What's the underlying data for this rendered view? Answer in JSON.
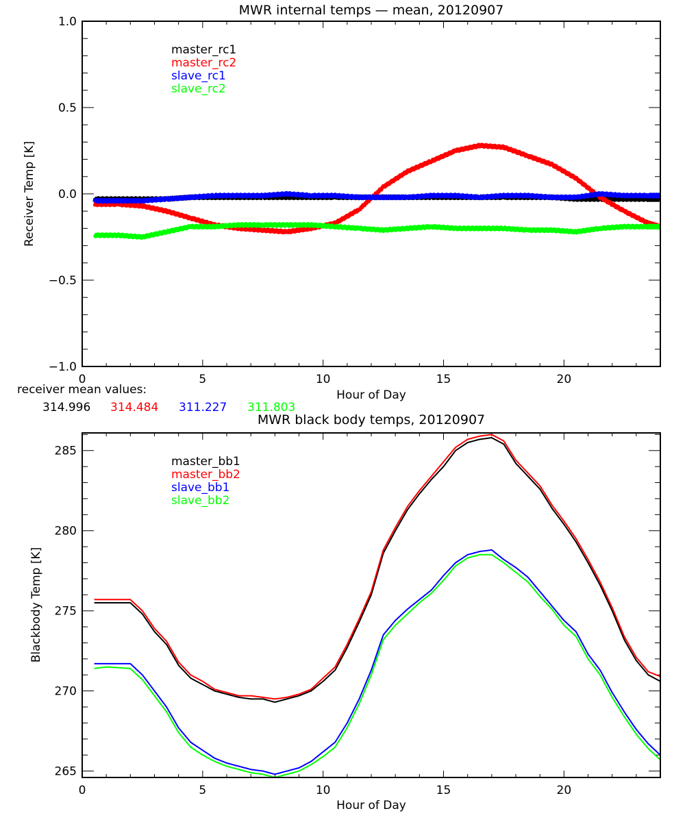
{
  "chart_data": [
    {
      "type": "line",
      "title": "MWR internal temps — mean, 20120907",
      "xlabel": "Hour of Day",
      "ylabel": "Receiver Temp [K]",
      "xlim": [
        0,
        24
      ],
      "ylim": [
        -1.0,
        1.0
      ],
      "xticks": [
        0,
        5,
        10,
        15,
        20
      ],
      "xtick_labels": [
        "0",
        "5",
        "10",
        "15",
        "20"
      ],
      "yticks": [
        -1.0,
        -0.5,
        0.0,
        0.5,
        1.0
      ],
      "ytick_labels": [
        "−1.0",
        "−0.5",
        "0.0",
        "0.5",
        "1.0"
      ],
      "grid": false,
      "legend_position": "top-left",
      "x": [
        0.5,
        1.5,
        2.5,
        3.5,
        4.5,
        5.5,
        6.5,
        7.5,
        8.5,
        9.5,
        10.5,
        11.5,
        12.5,
        13.5,
        14.5,
        15.5,
        16.5,
        17.5,
        18.5,
        19.5,
        20.5,
        21.5,
        22.5,
        23.5,
        24.0
      ],
      "series": [
        {
          "name": "master_rc1",
          "color": "#000000",
          "values": [
            -0.03,
            -0.03,
            -0.03,
            -0.03,
            -0.02,
            -0.02,
            -0.02,
            -0.02,
            -0.02,
            -0.02,
            -0.02,
            -0.02,
            -0.02,
            -0.02,
            -0.02,
            -0.02,
            -0.02,
            -0.02,
            -0.02,
            -0.02,
            -0.03,
            -0.03,
            -0.03,
            -0.03,
            -0.03
          ]
        },
        {
          "name": "master_rc2",
          "color": "#ff0000",
          "values": [
            -0.06,
            -0.06,
            -0.07,
            -0.1,
            -0.14,
            -0.18,
            -0.2,
            -0.21,
            -0.22,
            -0.2,
            -0.17,
            -0.09,
            0.04,
            0.13,
            0.19,
            0.25,
            0.28,
            0.27,
            0.22,
            0.17,
            0.09,
            -0.02,
            -0.1,
            -0.17,
            -0.19
          ]
        },
        {
          "name": "slave_rc1",
          "color": "#0000ff",
          "values": [
            -0.04,
            -0.04,
            -0.04,
            -0.03,
            -0.02,
            -0.01,
            -0.01,
            -0.01,
            0.0,
            -0.01,
            -0.01,
            -0.02,
            -0.02,
            -0.02,
            -0.01,
            -0.01,
            -0.02,
            -0.01,
            -0.01,
            -0.02,
            -0.02,
            0.0,
            -0.01,
            -0.01,
            -0.01
          ]
        },
        {
          "name": "slave_rc2",
          "color": "#00ff00",
          "values": [
            -0.24,
            -0.24,
            -0.25,
            -0.22,
            -0.19,
            -0.19,
            -0.18,
            -0.18,
            -0.18,
            -0.18,
            -0.19,
            -0.2,
            -0.21,
            -0.2,
            -0.19,
            -0.2,
            -0.2,
            -0.2,
            -0.21,
            -0.21,
            -0.22,
            -0.2,
            -0.19,
            -0.19,
            -0.19
          ]
        }
      ],
      "annotation": {
        "label": "receiver mean values:",
        "values": [
          {
            "text": "314.996",
            "color": "#000000"
          },
          {
            "text": "314.484",
            "color": "#ff0000"
          },
          {
            "text": "311.227",
            "color": "#0000ff"
          },
          {
            "text": "311.803",
            "color": "#00ff00"
          }
        ]
      }
    },
    {
      "type": "line",
      "title": "MWR black body temps, 20120907",
      "xlabel": "Hour of Day",
      "ylabel": "Blackbody Temp [K]",
      "xlim": [
        0,
        24
      ],
      "ylim": [
        264.6,
        286.1
      ],
      "xticks": [
        0,
        5,
        10,
        15,
        20
      ],
      "xtick_labels": [
        "0",
        "5",
        "10",
        "15",
        "20"
      ],
      "yticks": [
        265,
        270,
        275,
        280,
        285
      ],
      "ytick_labels": [
        "265",
        "270",
        "275",
        "280",
        "285"
      ],
      "grid": false,
      "legend_position": "top-left",
      "x": [
        0.5,
        1.0,
        2.0,
        2.5,
        3.0,
        3.5,
        4.0,
        4.5,
        5.0,
        5.5,
        6.0,
        6.5,
        7.0,
        7.5,
        8.0,
        8.5,
        9.0,
        9.5,
        10.0,
        10.5,
        11.0,
        11.5,
        12.0,
        12.5,
        13.0,
        13.5,
        14.0,
        14.5,
        15.0,
        15.5,
        16.0,
        16.5,
        17.0,
        17.5,
        18.0,
        18.5,
        19.0,
        19.5,
        20.0,
        20.5,
        21.0,
        21.5,
        22.0,
        22.5,
        23.0,
        23.5,
        24.0
      ],
      "series": [
        {
          "name": "master_bb1",
          "color": "#000000",
          "values": [
            275.5,
            275.5,
            275.5,
            274.8,
            273.7,
            272.9,
            271.6,
            270.8,
            270.4,
            270.0,
            269.8,
            269.6,
            269.5,
            269.5,
            269.3,
            269.5,
            269.7,
            270.0,
            270.6,
            271.3,
            272.7,
            274.3,
            276.0,
            278.6,
            280.0,
            281.3,
            282.3,
            283.2,
            284.0,
            285.0,
            285.5,
            285.7,
            285.8,
            285.4,
            284.2,
            283.4,
            282.6,
            281.4,
            280.4,
            279.3,
            278.0,
            276.6,
            275.0,
            273.2,
            271.9,
            271.0,
            270.6
          ]
        },
        {
          "name": "master_bb2",
          "color": "#ff0000",
          "values": [
            275.7,
            275.7,
            275.7,
            275.0,
            273.9,
            273.1,
            271.8,
            271.0,
            270.6,
            270.1,
            269.9,
            269.7,
            269.7,
            269.6,
            269.5,
            269.6,
            269.8,
            270.1,
            270.8,
            271.5,
            272.9,
            274.5,
            276.2,
            278.8,
            280.2,
            281.5,
            282.5,
            283.4,
            284.3,
            285.2,
            285.7,
            285.9,
            286.0,
            285.6,
            284.4,
            283.6,
            282.8,
            281.6,
            280.6,
            279.5,
            278.2,
            276.8,
            275.2,
            273.4,
            272.1,
            271.2,
            270.9
          ]
        },
        {
          "name": "slave_bb1",
          "color": "#0000ff",
          "values": [
            271.7,
            271.7,
            271.7,
            271.0,
            270.0,
            269.0,
            267.7,
            266.8,
            266.3,
            265.8,
            265.5,
            265.3,
            265.1,
            265.0,
            264.8,
            265.0,
            265.2,
            265.6,
            266.2,
            266.8,
            268.0,
            269.5,
            271.3,
            273.5,
            274.4,
            275.1,
            275.7,
            276.3,
            277.2,
            278.0,
            278.5,
            278.7,
            278.8,
            278.2,
            277.7,
            277.1,
            276.2,
            275.3,
            274.4,
            273.7,
            272.3,
            271.3,
            269.9,
            268.7,
            267.6,
            266.7,
            266.0
          ]
        },
        {
          "name": "slave_bb2",
          "color": "#00ff00",
          "values": [
            271.4,
            271.5,
            271.4,
            270.7,
            269.7,
            268.7,
            267.4,
            266.5,
            266.0,
            265.6,
            265.3,
            265.1,
            264.9,
            264.8,
            264.6,
            264.8,
            265.0,
            265.4,
            265.9,
            266.5,
            267.7,
            269.2,
            271.0,
            273.2,
            274.1,
            274.8,
            275.5,
            276.1,
            276.9,
            277.8,
            278.3,
            278.5,
            278.5,
            278.0,
            277.4,
            276.8,
            275.9,
            275.1,
            274.1,
            273.4,
            272.0,
            271.0,
            269.6,
            268.4,
            267.3,
            266.4,
            265.7
          ]
        }
      ]
    }
  ]
}
